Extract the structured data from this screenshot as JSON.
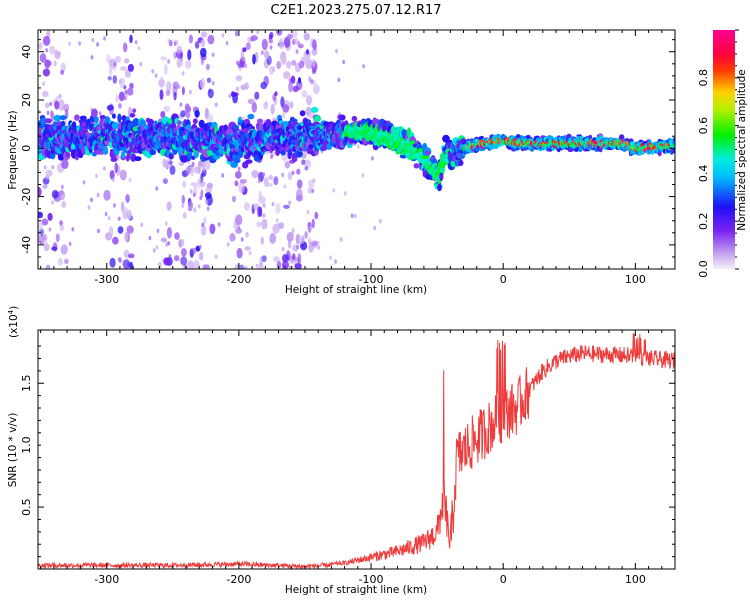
{
  "title": "C2E1.2023.275.07.12.R17",
  "chart_data": [
    {
      "type": "heatmap",
      "xlabel": "Height of straight line (km)",
      "ylabel": "Frequency (Hz)",
      "xlim": [
        -352,
        130
      ],
      "ylim": [
        -50,
        49
      ],
      "xticks": [
        "-300",
        "-200",
        "-100",
        "0",
        "100"
      ],
      "yticks": [
        "-40",
        "-20",
        "0",
        "20",
        "40"
      ],
      "colorbar": {
        "label": "Normalized spectral amplitude",
        "range": [
          0,
          1
        ],
        "ticks": [
          "0.0",
          "0.2",
          "0.4",
          "0.6",
          "0.8"
        ],
        "colormap": "rainbow (light purple → blue → cyan → green → yellow → red → magenta)"
      },
      "band_center_hz": [
        {
          "x": -350,
          "y": 4
        },
        {
          "x": -300,
          "y": 5
        },
        {
          "x": -250,
          "y": 4
        },
        {
          "x": -200,
          "y": 3
        },
        {
          "x": -160,
          "y": 4
        },
        {
          "x": -130,
          "y": 6
        },
        {
          "x": -100,
          "y": 7
        },
        {
          "x": -80,
          "y": 4
        },
        {
          "x": -60,
          "y": -4
        },
        {
          "x": -48,
          "y": -12
        },
        {
          "x": -45,
          "y": -4
        },
        {
          "x": -35,
          "y": -2
        },
        {
          "x": -25,
          "y": 1
        },
        {
          "x": -5,
          "y": 3
        },
        {
          "x": 20,
          "y": 2
        },
        {
          "x": 90,
          "y": 2
        },
        {
          "x": 100,
          "y": 0
        },
        {
          "x": 130,
          "y": 1
        }
      ],
      "broadband_regions_km": [
        [
          -352,
          -330
        ],
        [
          -300,
          -280
        ],
        [
          -260,
          -220
        ],
        [
          -205,
          -140
        ]
      ]
    },
    {
      "type": "line",
      "xlabel": "Height of straight line (km)",
      "ylabel": "SNR (10 * v/v)",
      "multiplier": "(x10",
      "multiplier_exp": "4",
      "xlim": [
        -352,
        130
      ],
      "ylim": [
        0,
        1.93
      ],
      "xticks": [
        "-300",
        "-200",
        "-100",
        "0",
        "100"
      ],
      "yticks": [
        "0.5",
        "1.0",
        "1.5"
      ],
      "series": [
        {
          "color": "#ee3b3b",
          "envelope_x": [
            -352,
            -250,
            -200,
            -150,
            -120,
            -100,
            -80,
            -60,
            -50,
            -45,
            -40,
            -35,
            -30,
            -20,
            -10,
            0,
            10,
            20,
            30,
            40,
            50,
            60,
            80,
            100,
            110,
            120,
            130
          ],
          "envelope_y": [
            0.03,
            0.03,
            0.04,
            0.02,
            0.04,
            0.08,
            0.12,
            0.18,
            0.25,
            0.5,
            0.15,
            0.9,
            0.95,
            1.05,
            1.15,
            1.25,
            1.3,
            1.45,
            1.6,
            1.68,
            1.72,
            1.74,
            1.73,
            1.72,
            1.7,
            1.69,
            1.68
          ]
        }
      ]
    }
  ]
}
